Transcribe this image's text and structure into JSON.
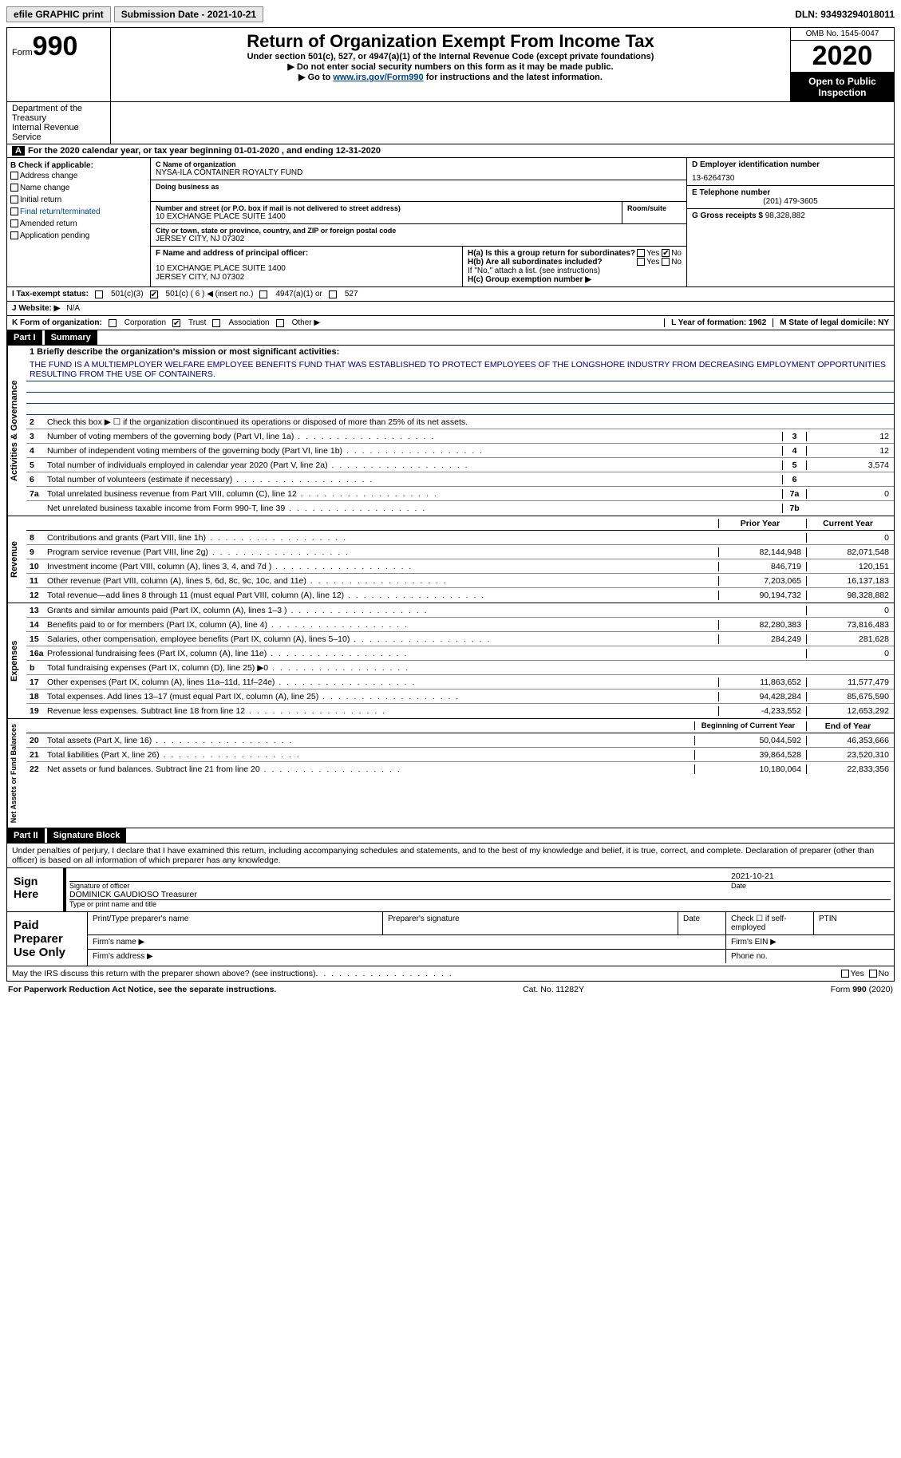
{
  "topbar": {
    "efile": "efile GRAPHIC print",
    "submission_label": "Submission Date - ",
    "submission_date": "2021-10-21",
    "dln_label": "DLN: ",
    "dln": "93493294018011"
  },
  "header": {
    "form_prefix": "Form",
    "form_number": "990",
    "title": "Return of Organization Exempt From Income Tax",
    "subtitle": "Under section 501(c), 527, or 4947(a)(1) of the Internal Revenue Code (except private foundations)",
    "instr1": "Do not enter social security numbers on this form as it may be made public.",
    "instr2_pre": "Go to ",
    "instr2_link": "www.irs.gov/Form990",
    "instr2_post": " for instructions and the latest information.",
    "omb": "OMB No. 1545-0047",
    "year": "2020",
    "open_public": "Open to Public Inspection",
    "dept1": "Department of the Treasury",
    "dept2": "Internal Revenue Service"
  },
  "period": "For the 2020 calendar year, or tax year beginning 01-01-2020    , and ending 12-31-2020",
  "boxB": {
    "title": "B Check if applicable:",
    "items": [
      "Address change",
      "Name change",
      "Initial return",
      "Final return/terminated",
      "Amended return",
      "Application pending"
    ]
  },
  "boxC": {
    "name_label": "C Name of organization",
    "name": "NYSA-ILA CONTAINER ROYALTY FUND",
    "dba_label": "Doing business as",
    "addr_label": "Number and street (or P.O. box if mail is not delivered to street address)",
    "room_label": "Room/suite",
    "addr": "10 EXCHANGE PLACE SUITE 1400",
    "city_label": "City or town, state or province, country, and ZIP or foreign postal code",
    "city": "JERSEY CITY, NJ  07302"
  },
  "boxD": {
    "label": "D Employer identification number",
    "value": "13-6264730"
  },
  "boxE": {
    "label": "E Telephone number",
    "value": "(201) 479-3605"
  },
  "boxG": {
    "label": "G Gross receipts $",
    "value": "98,328,882"
  },
  "boxF": {
    "label": "F  Name and address of principal officer:",
    "addr1": "10 EXCHANGE PLACE SUITE 1400",
    "addr2": "JERSEY CITY, NJ  07302"
  },
  "boxH": {
    "a": "H(a)  Is this a group return for subordinates?",
    "b": "H(b)  Are all subordinates included?",
    "b_note": "If \"No,\" attach a list. (see instructions)",
    "c": "H(c)  Group exemption number ▶",
    "yes": "Yes",
    "no": "No"
  },
  "statusI": {
    "label": "I    Tax-exempt status:",
    "opts": [
      "501(c)(3)",
      "501(c) ( 6 ) ◀ (insert no.)",
      "4947(a)(1) or",
      "527"
    ]
  },
  "websiteJ": {
    "label": "J    Website: ▶",
    "value": "N/A"
  },
  "orgK": {
    "label": "K Form of organization:",
    "opts": [
      "Corporation",
      "Trust",
      "Association",
      "Other ▶"
    ],
    "L": "L Year of formation: 1962",
    "M": "M State of legal domicile: NY"
  },
  "part1": {
    "label": "Part I",
    "title": "Summary",
    "mission_label": "1   Briefly describe the organization's mission or most significant activities:",
    "mission": "THE FUND IS A MULTIEMPLOYER WELFARE EMPLOYEE BENEFITS FUND THAT WAS ESTABLISHED TO PROTECT EMPLOYEES OF THE LONGSHORE INDUSTRY FROM DECREASING EMPLOYMENT OPPORTUNITIES RESULTING FROM THE USE OF CONTAINERS.",
    "line2": "Check this box ▶ ☐  if the organization discontinued its operations or disposed of more than 25% of its net assets.",
    "governance": [
      {
        "n": "3",
        "t": "Number of voting members of the governing body (Part VI, line 1a)",
        "b": "3",
        "v": "12"
      },
      {
        "n": "4",
        "t": "Number of independent voting members of the governing body (Part VI, line 1b)",
        "b": "4",
        "v": "12"
      },
      {
        "n": "5",
        "t": "Total number of individuals employed in calendar year 2020 (Part V, line 2a)",
        "b": "5",
        "v": "3,574"
      },
      {
        "n": "6",
        "t": "Total number of volunteers (estimate if necessary)",
        "b": "6",
        "v": ""
      },
      {
        "n": "7a",
        "t": "Total unrelated business revenue from Part VIII, column (C), line 12",
        "b": "7a",
        "v": "0"
      },
      {
        "n": "",
        "t": "Net unrelated business taxable income from Form 990-T, line 39",
        "b": "7b",
        "v": ""
      }
    ],
    "col_prior": "Prior Year",
    "col_current": "Current Year",
    "revenue": [
      {
        "n": "8",
        "t": "Contributions and grants (Part VIII, line 1h)",
        "p": "",
        "c": "0"
      },
      {
        "n": "9",
        "t": "Program service revenue (Part VIII, line 2g)",
        "p": "82,144,948",
        "c": "82,071,548"
      },
      {
        "n": "10",
        "t": "Investment income (Part VIII, column (A), lines 3, 4, and 7d )",
        "p": "846,719",
        "c": "120,151"
      },
      {
        "n": "11",
        "t": "Other revenue (Part VIII, column (A), lines 5, 6d, 8c, 9c, 10c, and 11e)",
        "p": "7,203,065",
        "c": "16,137,183"
      },
      {
        "n": "12",
        "t": "Total revenue—add lines 8 through 11 (must equal Part VIII, column (A), line 12)",
        "p": "90,194,732",
        "c": "98,328,882"
      }
    ],
    "expenses": [
      {
        "n": "13",
        "t": "Grants and similar amounts paid (Part IX, column (A), lines 1–3 )",
        "p": "",
        "c": "0"
      },
      {
        "n": "14",
        "t": "Benefits paid to or for members (Part IX, column (A), line 4)",
        "p": "82,280,383",
        "c": "73,816,483"
      },
      {
        "n": "15",
        "t": "Salaries, other compensation, employee benefits (Part IX, column (A), lines 5–10)",
        "p": "284,249",
        "c": "281,628"
      },
      {
        "n": "16a",
        "t": "Professional fundraising fees (Part IX, column (A), line 11e)",
        "p": "",
        "c": "0"
      },
      {
        "n": "b",
        "t": "Total fundraising expenses (Part IX, column (D), line 25) ▶0",
        "p": "grey",
        "c": "grey"
      },
      {
        "n": "17",
        "t": "Other expenses (Part IX, column (A), lines 11a–11d, 11f–24e)",
        "p": "11,863,652",
        "c": "11,577,479"
      },
      {
        "n": "18",
        "t": "Total expenses. Add lines 13–17 (must equal Part IX, column (A), line 25)",
        "p": "94,428,284",
        "c": "85,675,590"
      },
      {
        "n": "19",
        "t": "Revenue less expenses. Subtract line 18 from line 12",
        "p": "-4,233,552",
        "c": "12,653,292"
      }
    ],
    "col_begin": "Beginning of Current Year",
    "col_end": "End of Year",
    "netassets": [
      {
        "n": "20",
        "t": "Total assets (Part X, line 16)",
        "p": "50,044,592",
        "c": "46,353,666"
      },
      {
        "n": "21",
        "t": "Total liabilities (Part X, line 26)",
        "p": "39,864,528",
        "c": "23,520,310"
      },
      {
        "n": "22",
        "t": "Net assets or fund balances. Subtract line 21 from line 20",
        "p": "10,180,064",
        "c": "22,833,356"
      }
    ]
  },
  "part2": {
    "label": "Part II",
    "title": "Signature Block",
    "declaration": "Under penalties of perjury, I declare that I have examined this return, including accompanying schedules and statements, and to the best of my knowledge and belief, it is true, correct, and complete. Declaration of preparer (other than officer) is based on all information of which preparer has any knowledge.",
    "sign_here": "Sign Here",
    "sig_officer": "Signature of officer",
    "sig_date_label": "Date",
    "sig_date": "2021-10-21",
    "officer_name": "DOMINICK GAUDIOSO  Treasurer",
    "type_name": "Type or print name and title",
    "paid_label": "Paid Preparer Use Only",
    "prep_name": "Print/Type preparer's name",
    "prep_sig": "Preparer's signature",
    "prep_date": "Date",
    "prep_check": "Check ☐ if self-employed",
    "ptin": "PTIN",
    "firm_name": "Firm's name  ▶",
    "firm_ein": "Firm's EIN ▶",
    "firm_addr": "Firm's address ▶",
    "phone": "Phone no.",
    "discuss": "May the IRS discuss this return with the preparer shown above? (see instructions)",
    "yes": "Yes",
    "no": "No"
  },
  "footer": {
    "left": "For Paperwork Reduction Act Notice, see the separate instructions.",
    "mid": "Cat. No. 11282Y",
    "right": "Form 990 (2020)"
  }
}
